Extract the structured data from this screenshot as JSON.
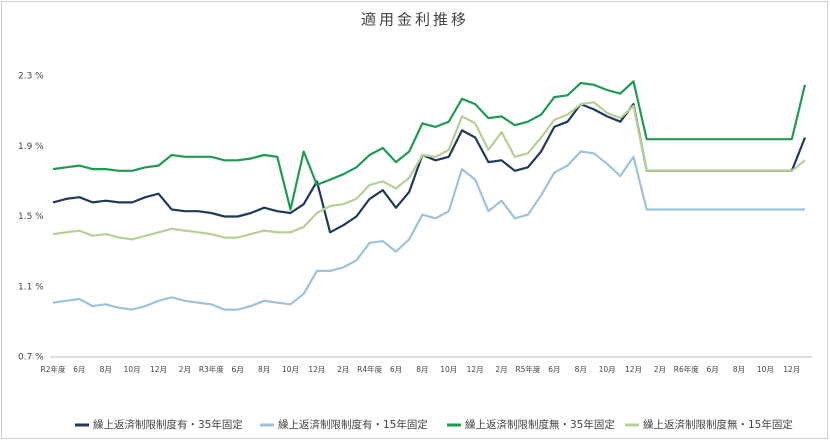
{
  "chart_data": {
    "type": "line",
    "title": "適用金利推移",
    "categories": [
      "R2年度",
      null,
      "6月",
      null,
      "8月",
      null,
      "10月",
      null,
      "12月",
      null,
      "2月",
      null,
      "R3年度",
      null,
      "6月",
      null,
      "8月",
      null,
      "10月",
      null,
      "12月",
      null,
      "2月",
      null,
      "R4年度",
      null,
      "6月",
      null,
      "8月",
      null,
      "10月",
      null,
      "12月",
      null,
      "2月",
      null,
      "R5年度",
      null,
      "6月",
      null,
      "8月",
      null,
      "10月",
      null,
      "12月",
      null,
      "2月",
      null,
      "R6年度",
      null,
      "6月",
      null,
      "8月",
      null,
      "10月",
      null,
      "12月",
      null
    ],
    "ylim": [
      0.7,
      2.3
    ],
    "yticks": [
      {
        "value": 0.7,
        "label": "0.7 %"
      },
      {
        "value": 1.1,
        "label": "1.1 %"
      },
      {
        "value": 1.5,
        "label": "1.5 %"
      },
      {
        "value": 1.9,
        "label": "1.9 %"
      },
      {
        "value": 2.3,
        "label": "2.3 %"
      }
    ],
    "grid": false,
    "legend": "bottom",
    "series": [
      {
        "name": "繰上返済制限制度有・35年固定",
        "color": "#1f3a5a",
        "values": [
          1.58,
          1.6,
          1.61,
          1.58,
          1.59,
          1.58,
          1.58,
          1.61,
          1.63,
          1.54,
          1.53,
          1.53,
          1.52,
          1.5,
          1.5,
          1.52,
          1.55,
          1.53,
          1.52,
          1.57,
          1.7,
          1.41,
          1.45,
          1.5,
          1.6,
          1.65,
          1.55,
          1.64,
          1.85,
          1.82,
          1.84,
          1.99,
          1.95,
          1.81,
          1.82,
          1.76,
          1.78,
          1.87,
          2.01,
          2.04,
          2.14,
          2.11,
          2.07,
          2.04,
          2.14,
          1.76,
          1.76,
          1.76,
          1.76,
          1.76,
          1.76,
          1.76,
          1.76,
          1.76,
          1.76,
          1.76,
          1.76,
          1.95
        ]
      },
      {
        "name": "繰上返済制限制度有・15年固定",
        "color": "#9cc3d9",
        "values": [
          1.01,
          1.02,
          1.03,
          0.99,
          1.0,
          0.98,
          0.97,
          0.99,
          1.02,
          1.04,
          1.02,
          1.01,
          1.0,
          0.97,
          0.97,
          0.99,
          1.02,
          1.01,
          1.0,
          1.06,
          1.19,
          1.19,
          1.21,
          1.25,
          1.35,
          1.36,
          1.3,
          1.37,
          1.51,
          1.49,
          1.53,
          1.77,
          1.71,
          1.53,
          1.59,
          1.49,
          1.51,
          1.62,
          1.75,
          1.79,
          1.87,
          1.86,
          1.8,
          1.73,
          1.84,
          1.54,
          1.54,
          1.54,
          1.54,
          1.54,
          1.54,
          1.54,
          1.54,
          1.54,
          1.54,
          1.54,
          1.54,
          1.54
        ]
      },
      {
        "name": "繰上返済制限制度無・35年固定",
        "color": "#1f9a55",
        "values": [
          1.77,
          1.78,
          1.79,
          1.77,
          1.77,
          1.76,
          1.76,
          1.78,
          1.79,
          1.85,
          1.84,
          1.84,
          1.84,
          1.82,
          1.82,
          1.83,
          1.85,
          1.84,
          1.54,
          1.87,
          1.68,
          1.71,
          1.74,
          1.78,
          1.85,
          1.89,
          1.81,
          1.87,
          2.03,
          2.01,
          2.04,
          2.17,
          2.14,
          2.06,
          2.07,
          2.02,
          2.04,
          2.08,
          2.18,
          2.19,
          2.26,
          2.25,
          2.22,
          2.2,
          2.27,
          1.94,
          1.94,
          1.94,
          1.94,
          1.94,
          1.94,
          1.94,
          1.94,
          1.94,
          1.94,
          1.94,
          1.94,
          2.25
        ]
      },
      {
        "name": "繰上返済制限制度無・15年固定",
        "color": "#b5cf94",
        "values": [
          1.4,
          1.41,
          1.42,
          1.39,
          1.4,
          1.38,
          1.37,
          1.39,
          1.41,
          1.43,
          1.42,
          1.41,
          1.4,
          1.38,
          1.38,
          1.4,
          1.42,
          1.41,
          1.41,
          1.44,
          1.52,
          1.56,
          1.57,
          1.6,
          1.68,
          1.7,
          1.66,
          1.72,
          1.85,
          1.84,
          1.88,
          2.07,
          2.03,
          1.88,
          1.98,
          1.84,
          1.86,
          1.95,
          2.05,
          2.08,
          2.14,
          2.15,
          2.09,
          2.06,
          2.13,
          1.76,
          1.76,
          1.76,
          1.76,
          1.76,
          1.76,
          1.76,
          1.76,
          1.76,
          1.76,
          1.76,
          1.76,
          1.82
        ]
      }
    ]
  }
}
